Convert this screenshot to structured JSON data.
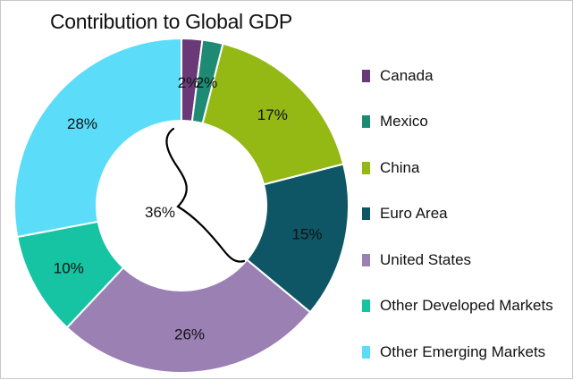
{
  "chart_data": {
    "type": "pie",
    "donut": true,
    "title": "Contribution to Global GDP",
    "slices": [
      {
        "label": "Canada",
        "value": 2,
        "display": "2%",
        "color": "#6a3a78"
      },
      {
        "label": "Mexico",
        "value": 2,
        "display": "2%",
        "color": "#1d8a74"
      },
      {
        "label": "China",
        "value": 17,
        "display": "17%",
        "color": "#94b814"
      },
      {
        "label": "Euro Area",
        "value": 15,
        "display": "15%",
        "color": "#0e5666"
      },
      {
        "label": "United States",
        "value": 26,
        "display": "26%",
        "color": "#9b80b4"
      },
      {
        "label": "Other Developed Markets",
        "value": 10,
        "display": "10%",
        "color": "#16c3a3"
      },
      {
        "label": "Other Emerging Markets",
        "value": 28,
        "display": "28%",
        "color": "#5bdcf8"
      }
    ],
    "annotation": {
      "text": "36%",
      "spans": [
        "Canada",
        "Mexico",
        "China",
        "Euro Area"
      ]
    },
    "legend_position": "right"
  }
}
